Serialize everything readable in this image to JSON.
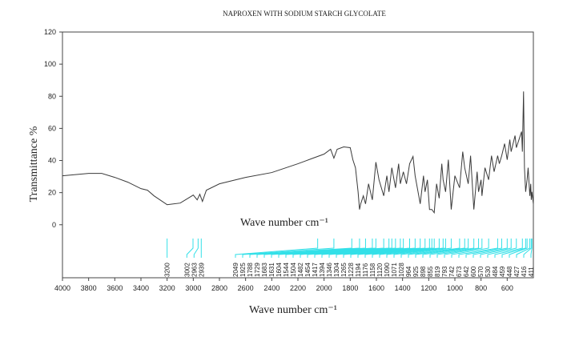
{
  "chart_data": {
    "type": "line",
    "title": "NAPROXEN WITH SODIUM STARCH GLYCOLATE",
    "y_label": "Transmittance %",
    "annotation": "Wave number cm⁻¹",
    "x_label": "Wave number cm⁻¹",
    "xlim": [
      4000,
      400
    ],
    "ylim": [
      -33,
      120
    ],
    "xticks": [
      4000,
      3800,
      3600,
      3400,
      3200,
      3000,
      2800,
      2600,
      2400,
      2200,
      2000,
      1800,
      1600,
      1400,
      1200,
      1000,
      800,
      600
    ],
    "yticks": [
      0,
      20,
      40,
      60,
      80,
      100,
      120
    ],
    "x": [
      4000,
      3800,
      3700,
      3600,
      3500,
      3400,
      3350,
      3300,
      3200,
      3100,
      3050,
      3000,
      2970,
      2950,
      2930,
      2900,
      2800,
      2600,
      2400,
      2200,
      2100,
      2000,
      1950,
      1925,
      1900,
      1850,
      1800,
      1780,
      1760,
      1740,
      1729,
      1720,
      1700,
      1683,
      1660,
      1631,
      1604,
      1580,
      1544,
      1520,
      1504,
      1482,
      1454,
      1430,
      1417,
      1394,
      1370,
      1346,
      1320,
      1304,
      1265,
      1240,
      1228,
      1210,
      1194,
      1176,
      1158,
      1140,
      1120,
      1100,
      1090,
      1071,
      1050,
      1028,
      1000,
      964,
      940,
      925,
      898,
      880,
      855,
      830,
      819,
      800,
      793,
      770,
      742,
      720,
      700,
      673,
      660,
      642,
      620,
      600,
      580,
      570,
      540,
      530,
      500,
      490,
      484,
      475,
      468,
      459,
      448,
      440,
      427,
      420,
      416,
      411,
      400
    ],
    "series": [
      {
        "color": "#3a3a3a",
        "values": [
          30.5,
          32,
          32,
          29.5,
          26.5,
          22.5,
          21.5,
          18,
          12.5,
          13.5,
          16,
          18.5,
          15.5,
          19,
          14.5,
          21.5,
          25.5,
          29.5,
          32.5,
          38,
          41,
          44,
          47,
          41.5,
          47,
          48.5,
          48,
          40.5,
          35.5,
          20.5,
          9.5,
          13,
          18,
          13,
          25.5,
          15.5,
          39,
          28,
          18,
          30.5,
          20.5,
          35.5,
          23,
          38,
          25.5,
          33,
          25.5,
          38,
          42.5,
          30.5,
          13,
          30.5,
          20.5,
          28,
          9.5,
          9.5,
          7.5,
          25.5,
          16.5,
          38,
          28,
          20.5,
          40.5,
          9.5,
          30.5,
          23,
          45.5,
          35.5,
          25.5,
          43,
          9.5,
          33,
          20.5,
          28,
          18,
          35.5,
          28,
          43,
          33,
          43,
          38,
          43,
          50.5,
          40.5,
          53,
          45.5,
          55.5,
          48,
          55.5,
          58,
          45.5,
          83,
          35.5,
          20.5,
          28,
          35.5,
          18,
          25.5,
          15.5,
          20.5,
          13
        ]
      }
    ],
    "peak_color": "#33e0e8",
    "peaks": [
      3200,
      3002,
      2963,
      2939,
      2049,
      1925,
      1788,
      1729,
      1683,
      1631,
      1604,
      1544,
      1504,
      1482,
      1454,
      1417,
      1394,
      1346,
      1304,
      1265,
      1228,
      1194,
      1176,
      1158,
      1120,
      1090,
      1071,
      1028,
      964,
      925,
      898,
      855,
      819,
      793,
      742,
      673,
      642,
      600,
      570,
      530,
      484,
      459,
      448,
      427,
      416,
      411
    ]
  }
}
